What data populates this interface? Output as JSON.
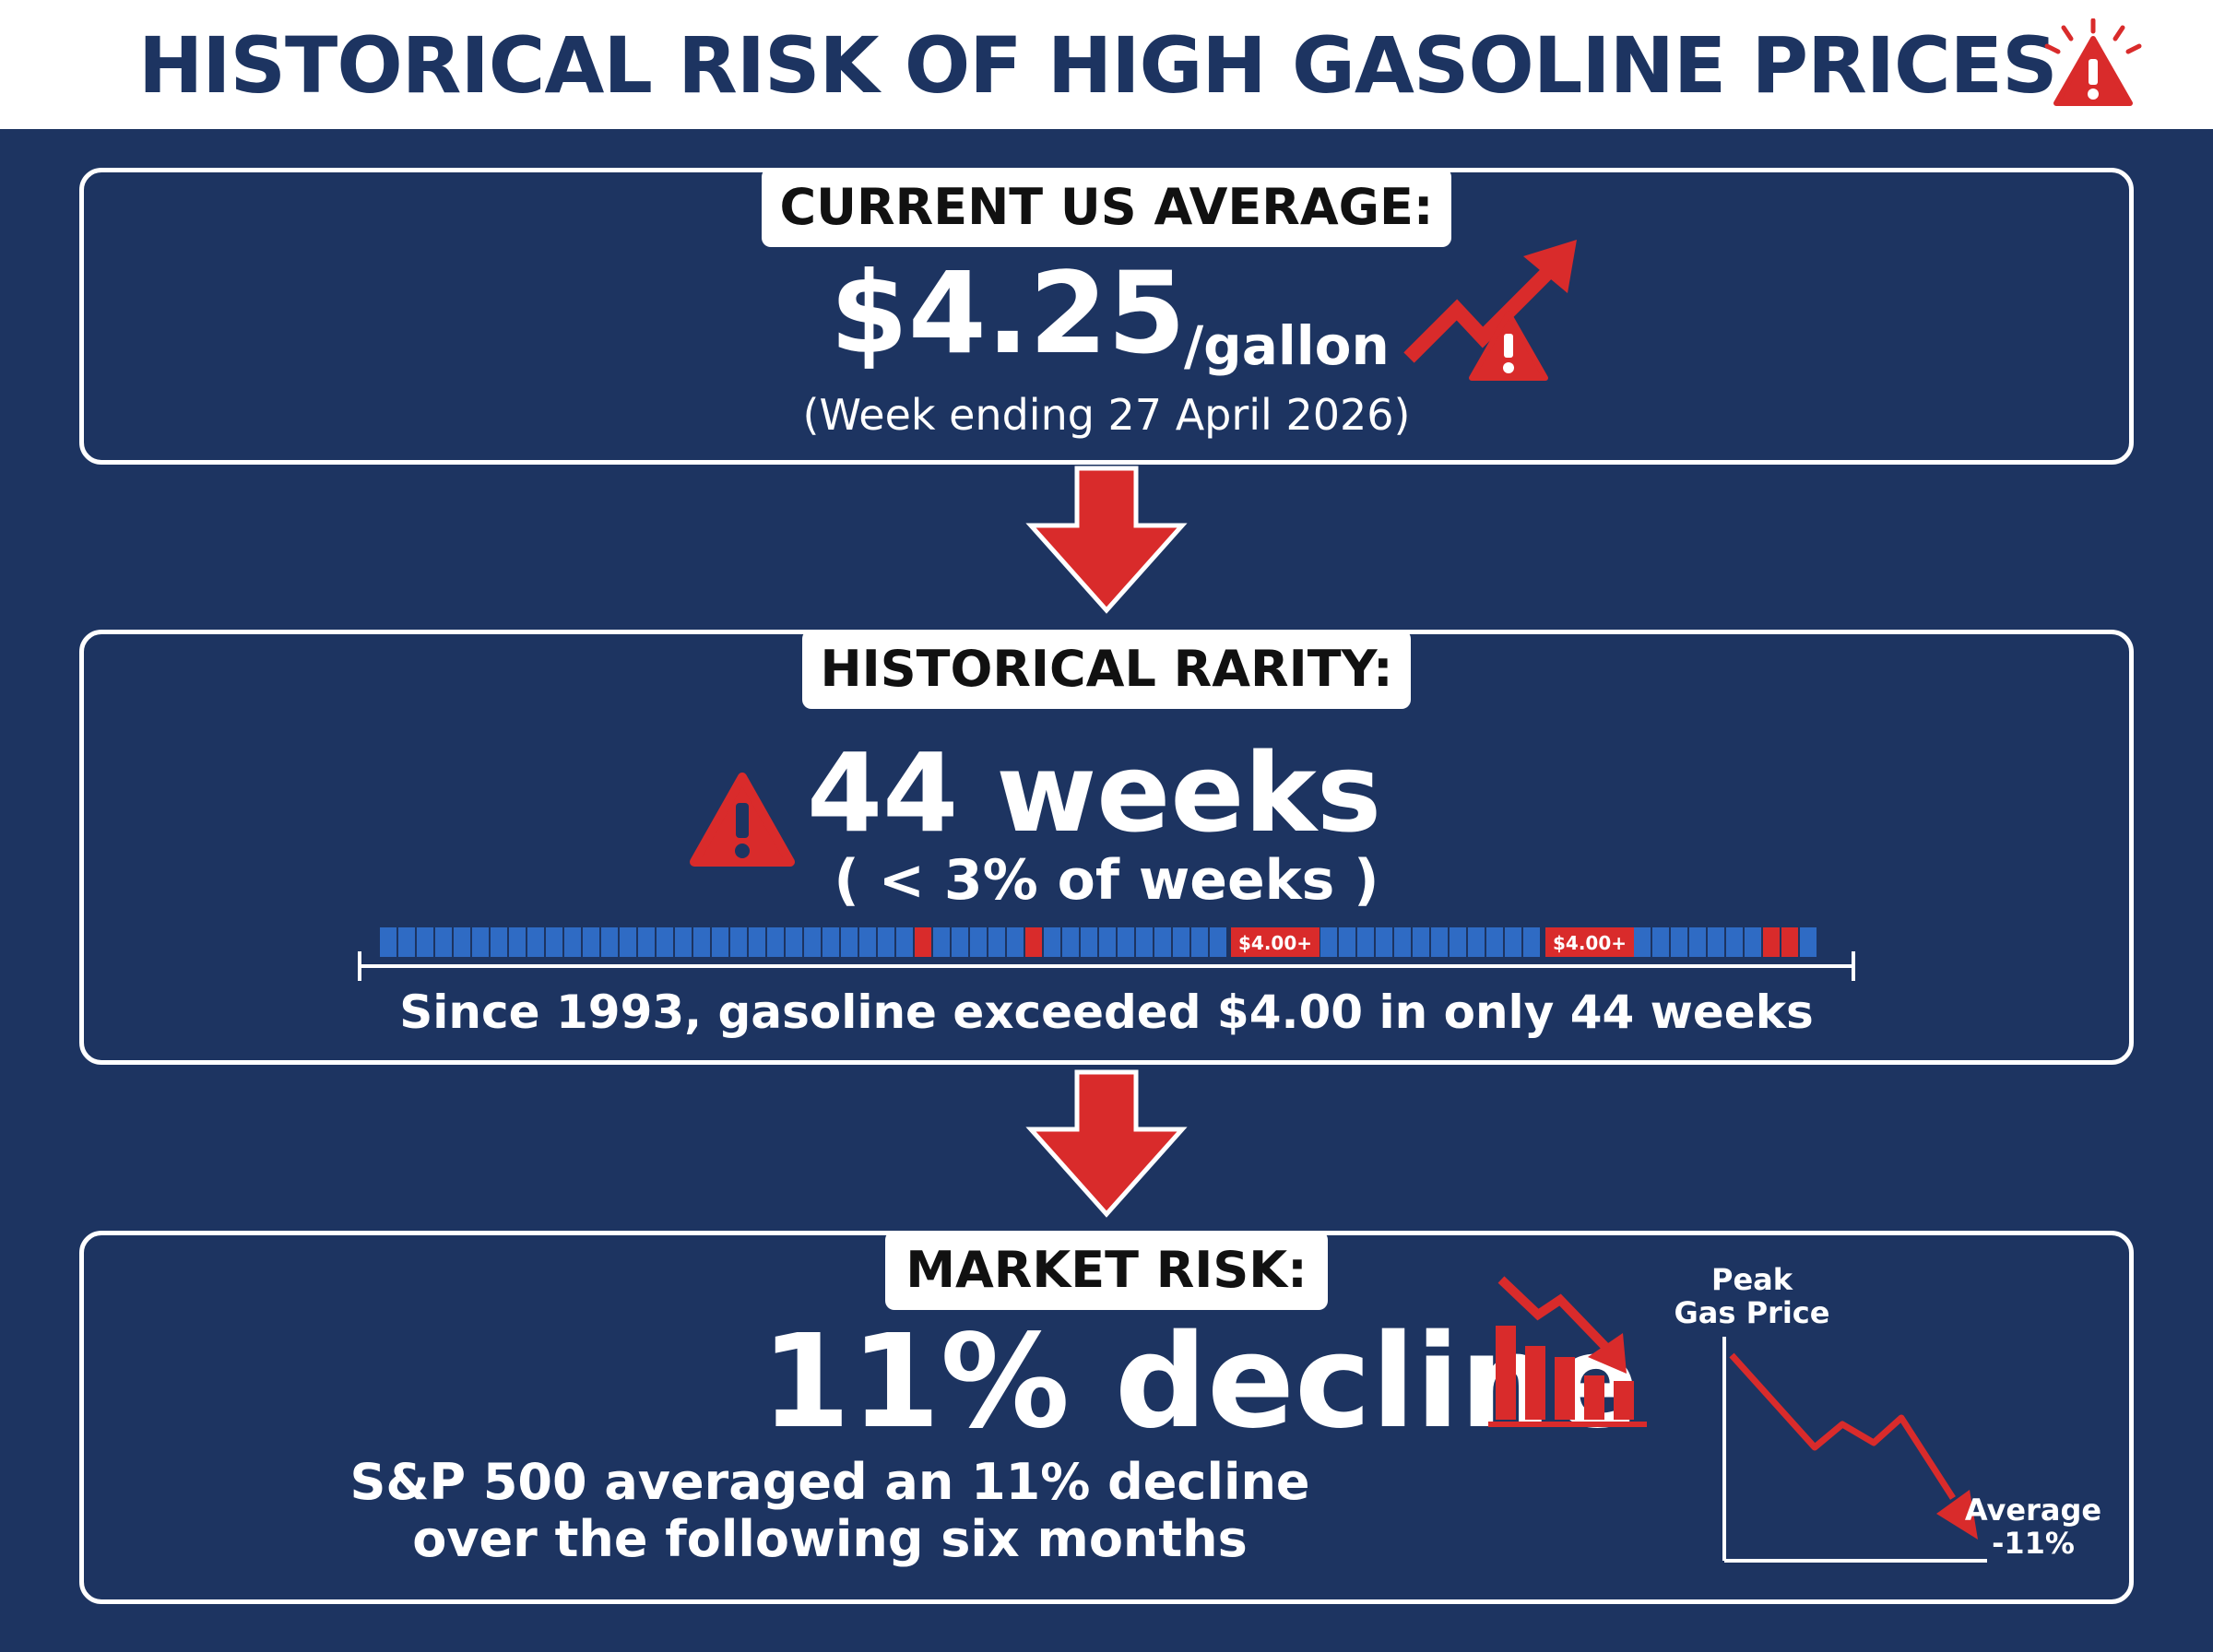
{
  "header": {
    "title": "HISTORICAL RISK OF HIGH GASOLINE PRICES",
    "icon": "warning-icon"
  },
  "colors": {
    "navy": "#1d3461",
    "red": "#d92b2b",
    "blue_bar": "#2f6bc4",
    "white": "#ffffff"
  },
  "current": {
    "tag": "CURRENT US AVERAGE:",
    "price": "$4.25",
    "unit": "/gallon",
    "week": "(Week ending 27 April 2026)",
    "icon": "rising-trend-warning-icon"
  },
  "rarity": {
    "tag": "HISTORICAL RARITY:",
    "weeks": "44 weeks",
    "pct": "( < 3% of weeks )",
    "timeline_labels": [
      "$4.00+",
      "$4.00+"
    ],
    "since": "Since 1993, gasoline exceeded $4.00 in only 44 weeks",
    "icon": "warning-icon"
  },
  "market": {
    "tag": "MARKET RISK:",
    "decline": "11% decline",
    "line1": "S&P 500 averaged an 11% decline",
    "line2": "over the following six months",
    "icon": "declining-bar-chart-icon",
    "mini_chart": {
      "peak_label_1": "Peak",
      "peak_label_2": "Gas Price",
      "avg_label_1": "Average",
      "avg_label_2": "-11%"
    }
  }
}
